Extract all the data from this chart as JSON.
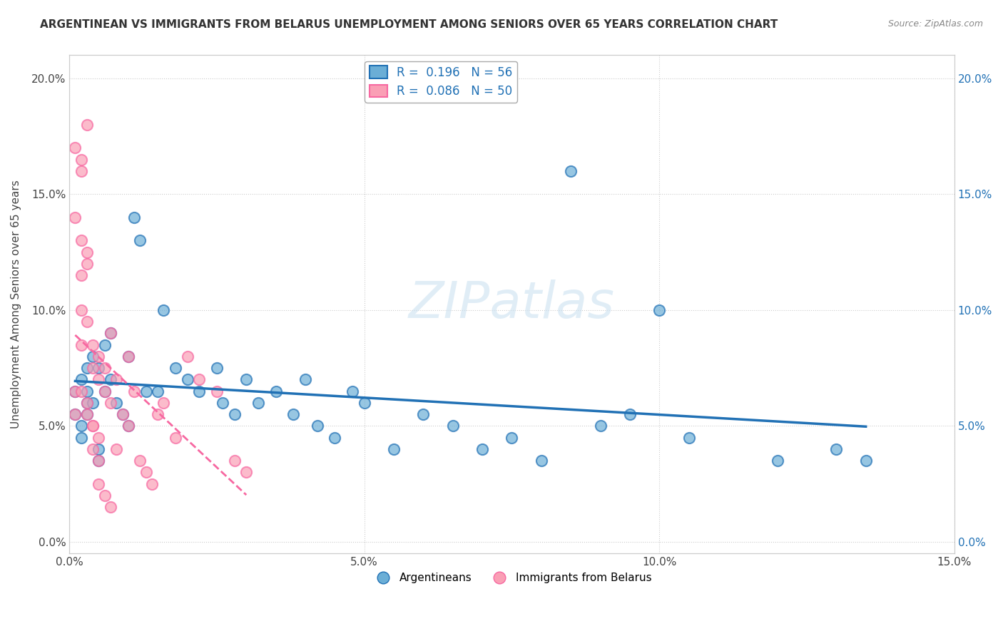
{
  "title": "ARGENTINEAN VS IMMIGRANTS FROM BELARUS UNEMPLOYMENT AMONG SENIORS OVER 65 YEARS CORRELATION CHART",
  "source": "Source: ZipAtlas.com",
  "ylabel": "Unemployment Among Seniors over 65 years",
  "xlim": [
    0,
    0.15
  ],
  "ylim": [
    -0.005,
    0.21
  ],
  "xticks": [
    0.0,
    0.05,
    0.1,
    0.15
  ],
  "xtick_labels": [
    "0.0%",
    "5.0%",
    "10.0%",
    "15.0%"
  ],
  "yticks": [
    0.0,
    0.05,
    0.1,
    0.15,
    0.2
  ],
  "ytick_labels": [
    "0.0%",
    "5.0%",
    "10.0%",
    "15.0%",
    "20.0%"
  ],
  "legend1_label": "R =  0.196   N = 56",
  "legend2_label": "R =  0.086   N = 50",
  "blue_color": "#6baed6",
  "pink_color": "#fa9fb5",
  "blue_line_color": "#2171b5",
  "pink_line_color": "#f768a1",
  "watermark": "ZIPatlas",
  "arg_x": [
    0.001,
    0.001,
    0.002,
    0.002,
    0.002,
    0.003,
    0.003,
    0.003,
    0.003,
    0.004,
    0.004,
    0.005,
    0.005,
    0.005,
    0.006,
    0.006,
    0.007,
    0.007,
    0.008,
    0.009,
    0.01,
    0.01,
    0.011,
    0.012,
    0.013,
    0.015,
    0.016,
    0.018,
    0.02,
    0.022,
    0.025,
    0.026,
    0.028,
    0.03,
    0.032,
    0.035,
    0.038,
    0.04,
    0.042,
    0.045,
    0.048,
    0.05,
    0.055,
    0.06,
    0.065,
    0.07,
    0.075,
    0.08,
    0.085,
    0.09,
    0.095,
    0.1,
    0.105,
    0.12,
    0.13,
    0.135
  ],
  "arg_y": [
    0.065,
    0.055,
    0.07,
    0.05,
    0.045,
    0.075,
    0.065,
    0.06,
    0.055,
    0.08,
    0.06,
    0.04,
    0.035,
    0.075,
    0.085,
    0.065,
    0.09,
    0.07,
    0.06,
    0.055,
    0.08,
    0.05,
    0.14,
    0.13,
    0.065,
    0.065,
    0.1,
    0.075,
    0.07,
    0.065,
    0.075,
    0.06,
    0.055,
    0.07,
    0.06,
    0.065,
    0.055,
    0.07,
    0.05,
    0.045,
    0.065,
    0.06,
    0.04,
    0.055,
    0.05,
    0.04,
    0.045,
    0.035,
    0.16,
    0.05,
    0.055,
    0.1,
    0.045,
    0.035,
    0.04,
    0.035
  ],
  "bel_x": [
    0.001,
    0.001,
    0.001,
    0.002,
    0.002,
    0.002,
    0.002,
    0.003,
    0.003,
    0.003,
    0.003,
    0.004,
    0.004,
    0.004,
    0.005,
    0.005,
    0.005,
    0.006,
    0.006,
    0.007,
    0.007,
    0.008,
    0.008,
    0.009,
    0.01,
    0.01,
    0.011,
    0.012,
    0.013,
    0.014,
    0.015,
    0.016,
    0.018,
    0.02,
    0.022,
    0.025,
    0.028,
    0.03,
    0.001,
    0.002,
    0.003,
    0.004,
    0.005,
    0.006,
    0.007,
    0.002,
    0.003,
    0.004,
    0.005,
    0.002
  ],
  "bel_y": [
    0.17,
    0.065,
    0.055,
    0.165,
    0.16,
    0.13,
    0.065,
    0.18,
    0.125,
    0.12,
    0.055,
    0.085,
    0.075,
    0.05,
    0.08,
    0.07,
    0.045,
    0.075,
    0.065,
    0.09,
    0.06,
    0.07,
    0.04,
    0.055,
    0.08,
    0.05,
    0.065,
    0.035,
    0.03,
    0.025,
    0.055,
    0.06,
    0.045,
    0.08,
    0.07,
    0.065,
    0.035,
    0.03,
    0.14,
    0.115,
    0.06,
    0.05,
    0.025,
    0.02,
    0.015,
    0.1,
    0.095,
    0.04,
    0.035,
    0.085
  ]
}
